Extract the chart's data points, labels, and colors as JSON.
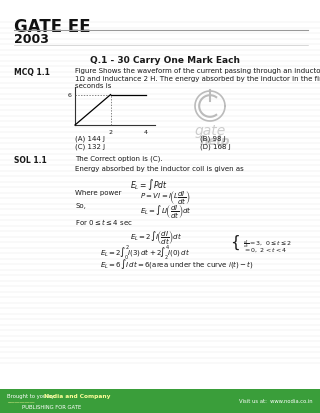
{
  "title": "GATE EE",
  "year": "2003",
  "footer_bg": "#3a9e3a",
  "section_title": "Q.1 - 30 Carry One Mark Each",
  "mcq_label": "MCQ 1.1",
  "mcq_text": "Figure Shows the waveform of the current passing through an inductor of resistance\n1Ω and inductance 2 H. The energy absorbed by the inductor in the first four\nseconds is",
  "options": [
    "(A) 144 J",
    "(B) 98 J",
    "(C) 132 J",
    "(D) 168 J"
  ],
  "sol_label": "SOL 1.1",
  "sol_line1": "The Correct option is (C).",
  "sol_line2": "Energy absorbed by the inductor coil is given as",
  "sol_line3": "Where power",
  "sol_line4": "So,",
  "sol_line5": "For",
  "bg_color": "#ffffff",
  "text_color": "#1a1a1a",
  "header_line_color": "#888888",
  "graph_line_color": "#000000",
  "graph_y_label": "6",
  "graph_x_tick1": "2",
  "graph_x_tick2": "4"
}
